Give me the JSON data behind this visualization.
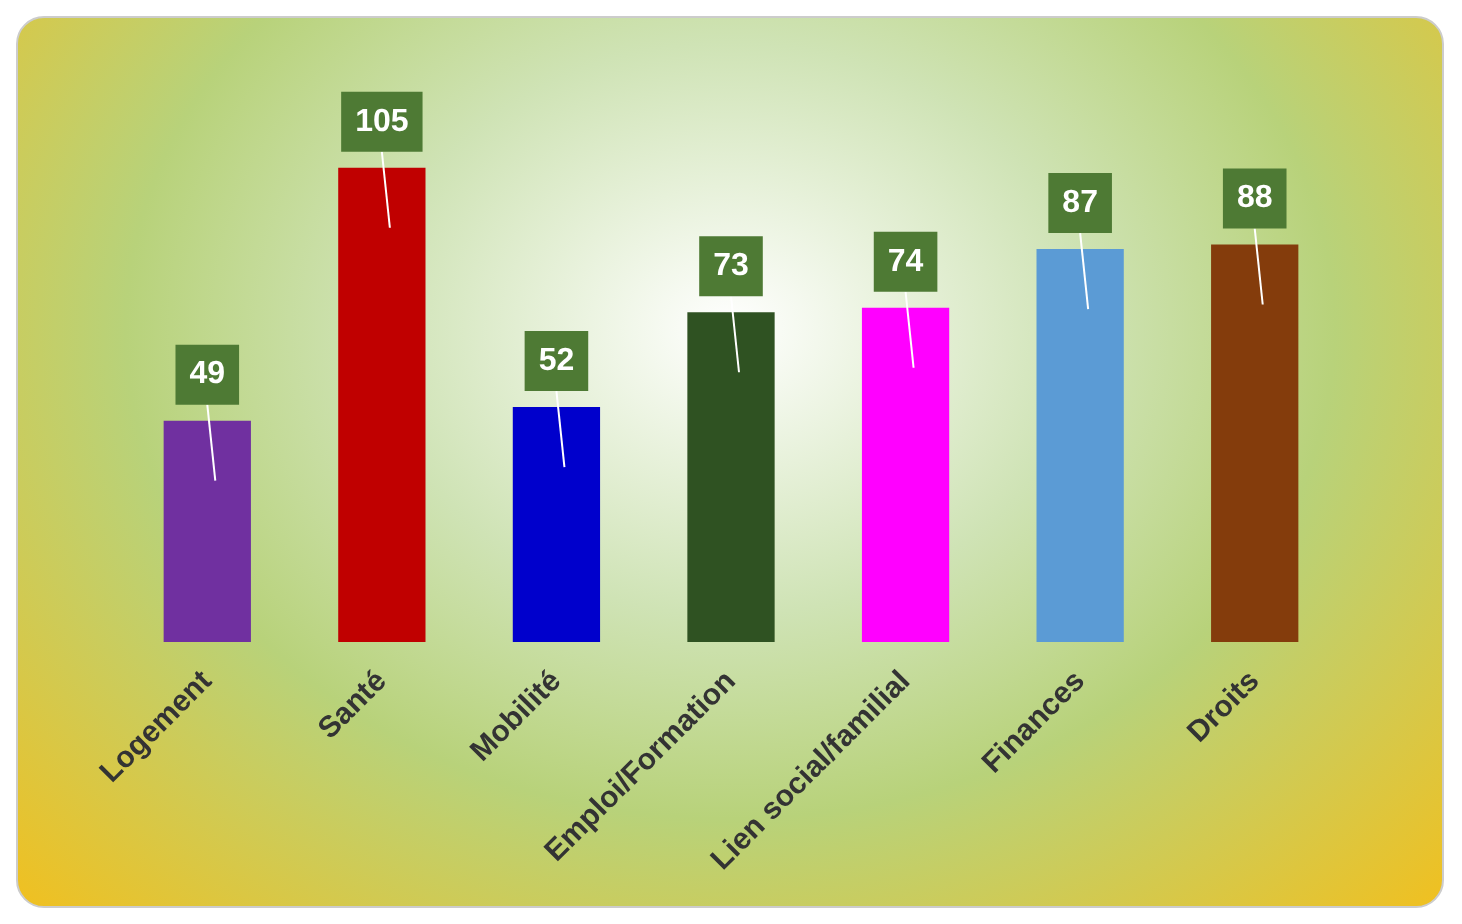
{
  "chart_data": {
    "type": "bar",
    "categories": [
      "Logement",
      "Santé",
      "Mobilité",
      "Emploi/Formation",
      "Lien social/familial",
      "Finances",
      "Droits"
    ],
    "values": [
      49,
      105,
      52,
      73,
      74,
      87,
      88
    ],
    "colors": [
      "#7030a0",
      "#c00000",
      "#0000cc",
      "#2f5222",
      "#ff00ff",
      "#5b9bd5",
      "#843c0c"
    ],
    "data_labels": true,
    "tick_labels": "x",
    "grid": false,
    "legend": false
  }
}
